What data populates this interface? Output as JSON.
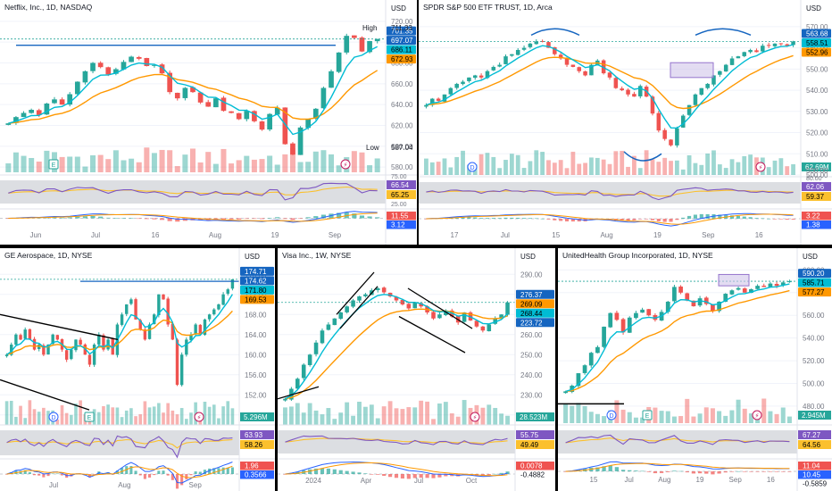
{
  "theme": {
    "up": "#26a69a",
    "down": "#ef5350",
    "fast": "#00bcd4",
    "slow": "#ff9800",
    "rsi": "#7e57c2",
    "rsi_ma": "#fbc02d",
    "trend": "#1565c0",
    "black": "#000000",
    "border": "#e0e3eb",
    "text": "#131722",
    "muted": "#787b86",
    "bg": "#ffffff"
  },
  "chart_data": [
    {
      "type": "candlestick",
      "title": "Netflix, Inc., 1D, NASDAQ",
      "currency": "USD",
      "ylim": [
        575,
        725
      ],
      "y_ticks": [
        "720.00",
        "700.00",
        "680.00",
        "660.00",
        "640.00",
        "620.00",
        "600.00",
        "580.00"
      ],
      "x_ticks": [
        "Jun",
        "Jul",
        "16",
        "Aug",
        "19",
        "Sep"
      ],
      "close": [
        622,
        628,
        632,
        635,
        630,
        641,
        645,
        640,
        650,
        662,
        672,
        680,
        676,
        669,
        674,
        681,
        686,
        684,
        677,
        678,
        670,
        652,
        646,
        656,
        652,
        642,
        638,
        646,
        634,
        632,
        626,
        634,
        624,
        616,
        631,
        637,
        602,
        592,
        618,
        626,
        636,
        656,
        672,
        690,
        706,
        704,
        691,
        701,
        703
      ],
      "price_labels": [
        {
          "text": "701.35",
          "kind": "dark"
        },
        {
          "text": "697.07",
          "kind": "trend"
        },
        {
          "text": "686.11",
          "kind": "fast"
        },
        {
          "text": "672.93",
          "kind": "slow"
        }
      ],
      "high": {
        "label": "High",
        "value": "711.33"
      },
      "low": {
        "label": "Low",
        "value": "587.04"
      },
      "rsi": {
        "value": "66.54",
        "ma": "65.25",
        "y_ticks": [
          "75.00",
          "25.00"
        ]
      },
      "macd": {
        "values": [
          "11.55",
          "3.12"
        ]
      },
      "events": [
        "E",
        "⚡"
      ]
    },
    {
      "type": "candlestick",
      "title": "SPDR S&P 500 ETF TRUST, 1D, Arca",
      "currency": "USD",
      "ylim": [
        500,
        575
      ],
      "y_ticks": [
        "570.00",
        "560.00",
        "550.00",
        "540.00",
        "530.00",
        "520.00",
        "510.00",
        "500.00"
      ],
      "x_ticks": [
        "17",
        "Jul",
        "15",
        "Aug",
        "19",
        "Sep",
        "16"
      ],
      "close": [
        533,
        536,
        535,
        538,
        541,
        543,
        544,
        546,
        547,
        546,
        549,
        551,
        552,
        556,
        557,
        559,
        560,
        562,
        563,
        563,
        560,
        557,
        555,
        552,
        551,
        549,
        547,
        552,
        554,
        548,
        546,
        541,
        540,
        538,
        537,
        542,
        537,
        529,
        521,
        517,
        514,
        522,
        528,
        533,
        538,
        541,
        543,
        547,
        549,
        552,
        555,
        556,
        558,
        559,
        558,
        561,
        561,
        562,
        562,
        561,
        563
      ],
      "price_labels": [
        {
          "text": "563.68",
          "kind": "dark"
        },
        {
          "text": "558.51",
          "kind": "fast"
        },
        {
          "text": "552.96",
          "kind": "slow"
        }
      ],
      "volume": {
        "value": "62.69M",
        "y_ticks": [
          "500.00"
        ]
      },
      "rsi": {
        "value": "62.06",
        "ma": "59.37",
        "y_ticks": [
          "80.00"
        ]
      },
      "macd": {
        "values": [
          "3.22",
          "1.38"
        ]
      },
      "events": [
        "D",
        "⚡"
      ]
    },
    {
      "type": "candlestick",
      "title": "GE Aerospace, 1D, NYSE",
      "currency": "USD",
      "ylim": [
        146,
        178
      ],
      "y_ticks": [
        "176.00",
        "172.00",
        "168.00",
        "164.00",
        "160.00",
        "156.00",
        "152.00",
        "148.00"
      ],
      "x_ticks": [
        "Jul",
        "Aug",
        "Sep"
      ],
      "close": [
        160,
        162,
        164,
        163,
        165,
        163,
        161,
        162,
        160,
        162,
        164,
        163,
        161,
        159,
        161,
        163,
        162,
        160,
        158,
        162,
        164,
        161,
        163,
        160,
        166,
        168,
        170,
        171,
        167,
        165,
        163,
        166,
        168,
        172,
        171,
        166,
        163,
        154,
        160,
        163,
        164,
        166,
        164,
        167,
        168,
        169,
        170,
        172,
        173,
        175
      ],
      "price_labels": [
        {
          "text": "174.71",
          "kind": "dark"
        },
        {
          "text": "174.62",
          "kind": "trend"
        },
        {
          "text": "171.80",
          "kind": "fast"
        },
        {
          "text": "169.53",
          "kind": "slow"
        }
      ],
      "volume": {
        "value": "5.296M"
      },
      "rsi": {
        "value": "63.93",
        "ma": "58.26"
      },
      "macd": {
        "values": [
          "1.96",
          "0.3566"
        ]
      },
      "events": [
        "D",
        "E",
        "⚡"
      ]
    },
    {
      "type": "candlestick",
      "title": "Visa Inc., 1W, NYSE",
      "currency": "USD",
      "ylim": [
        215,
        295
      ],
      "y_ticks": [
        "290.00",
        "280.00",
        "270.00",
        "260.00",
        "250.00",
        "240.00",
        "230.00",
        "220.00"
      ],
      "x_ticks": [
        "2024",
        "Apr",
        "Jul",
        "Oct"
      ],
      "close": [
        228,
        233,
        238,
        245,
        250,
        256,
        262,
        265,
        268,
        271,
        274,
        277,
        279,
        280,
        282,
        283,
        281,
        279,
        277,
        275,
        273,
        276,
        274,
        271,
        268,
        270,
        272,
        269,
        266,
        271,
        267,
        264,
        262,
        265,
        268,
        270,
        276
      ],
      "price_labels": [
        {
          "text": "276.37",
          "kind": "dark"
        },
        {
          "text": "269.09",
          "kind": "slow"
        },
        {
          "text": "268.44",
          "kind": "fast"
        },
        {
          "text": "223.72",
          "kind": "dark"
        }
      ],
      "volume": {
        "value": "28.523M"
      },
      "rsi": {
        "value": "55.75",
        "ma": "49.49"
      },
      "macd": {
        "values": [
          "0.0078",
          "-0.4882"
        ]
      },
      "events": [
        "⚡"
      ]
    },
    {
      "type": "candlestick",
      "title": "UnitedHealth Group Incorporated, 1D, NYSE",
      "currency": "USD",
      "ylim": [
        465,
        605
      ],
      "y_ticks": [
        "600.00",
        "580.00",
        "560.00",
        "540.00",
        "520.00",
        "500.00",
        "480.00"
      ],
      "x_ticks": [
        "15",
        "Jul",
        "Aug",
        "19",
        "Sep",
        "16"
      ],
      "close": [
        493,
        498,
        509,
        516,
        527,
        532,
        550,
        562,
        556,
        545,
        558,
        562,
        565,
        560,
        556,
        563,
        572,
        585,
        580,
        573,
        568,
        575,
        570,
        564,
        572,
        579,
        582,
        584,
        580,
        583,
        586,
        585,
        588,
        586,
        589,
        590
      ],
      "price_labels": [
        {
          "text": "590.20",
          "kind": "dark"
        },
        {
          "text": "585.71",
          "kind": "fast"
        },
        {
          "text": "577.27",
          "kind": "slow"
        }
      ],
      "volume": {
        "value": "2.945M"
      },
      "rsi": {
        "value": "67.27",
        "ma": "64.56"
      },
      "macd": {
        "values": [
          "11.04",
          "10.45",
          "-0.5859"
        ]
      },
      "events": [
        "D",
        "E",
        "⚡"
      ]
    }
  ]
}
